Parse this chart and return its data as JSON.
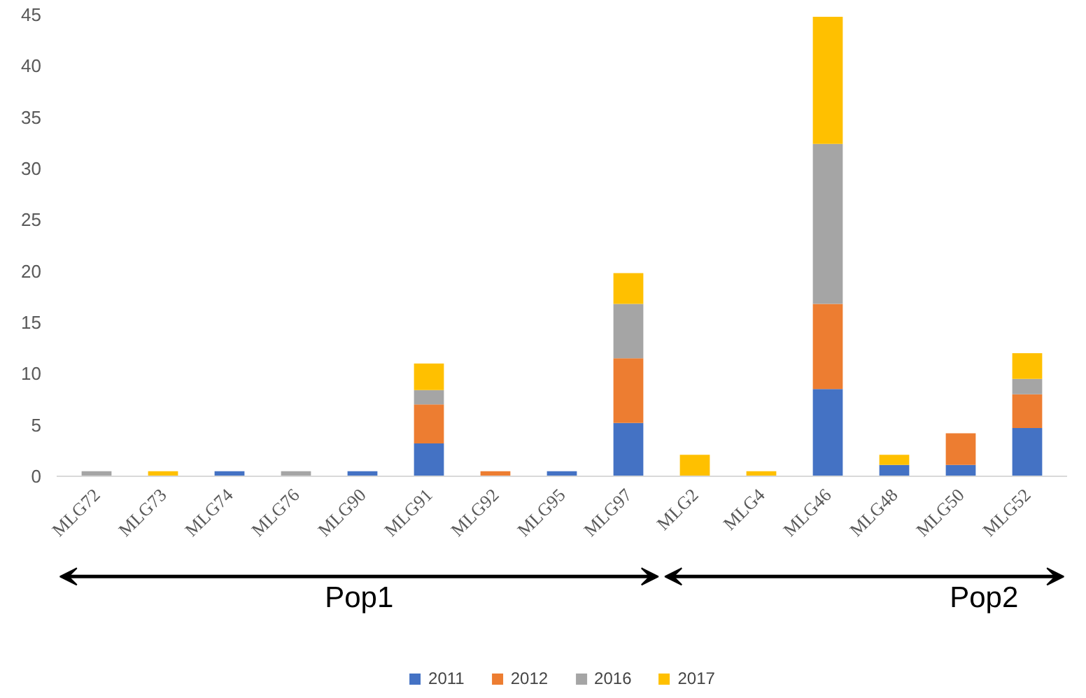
{
  "chart_data": {
    "type": "bar",
    "stacked": true,
    "categories": [
      "MLG72",
      "MLG73",
      "MLG74",
      "MLG76",
      "MLG90",
      "MLG91",
      "MLG92",
      "MLG95",
      "MLG97",
      "MLG2",
      "MLG4",
      "MLG46",
      "MLG48",
      "MLG50",
      "MLG52"
    ],
    "series": [
      {
        "name": "2011",
        "color": "#4472c4",
        "values": [
          0,
          0,
          0.5,
          0,
          0.5,
          3.2,
          0,
          0.5,
          5.2,
          0,
          0,
          8.5,
          1.1,
          1.1,
          4.7
        ]
      },
      {
        "name": "2012",
        "color": "#ed7d31",
        "values": [
          0,
          0,
          0,
          0,
          0,
          3.8,
          0.5,
          0,
          6.3,
          0,
          0,
          8.3,
          0,
          3.1,
          3.3
        ]
      },
      {
        "name": "2016",
        "color": "#a5a5a5",
        "values": [
          0.5,
          0,
          0,
          0.5,
          0,
          1.4,
          0,
          0,
          5.3,
          0,
          0,
          15.6,
          0,
          0,
          1.5
        ]
      },
      {
        "name": "2017",
        "color": "#ffc000",
        "values": [
          0,
          0.5,
          0,
          0,
          0,
          2.6,
          0,
          0,
          3.0,
          2.1,
          0.5,
          12.4,
          1.0,
          0,
          2.5
        ]
      }
    ],
    "ylim": [
      0,
      45
    ],
    "yticks": [
      0,
      5,
      10,
      15,
      20,
      25,
      30,
      35,
      40,
      45
    ],
    "grid": false,
    "legend": "bottom",
    "annotations": [
      "Pop1",
      "Pop2"
    ]
  }
}
